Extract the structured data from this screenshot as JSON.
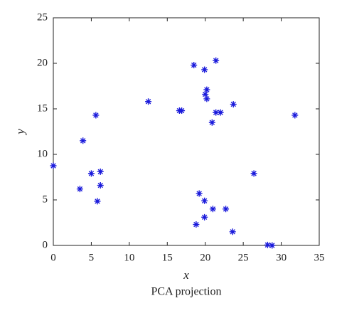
{
  "chart_data": {
    "type": "scatter",
    "x_label": "x",
    "y_label": "y",
    "subtitle": "PCA projection",
    "x": [
      0,
      3.5,
      3.9,
      5,
      5.6,
      6.2,
      6.2,
      5.8,
      12.5,
      16.6,
      16.9,
      18.5,
      19.9,
      21.4,
      20.2,
      20,
      20.2,
      21.4,
      22,
      20.9,
      23.7,
      31.8,
      26.4,
      19.2,
      19.9,
      21,
      22.7,
      19.9,
      18.8,
      23.6,
      28.2,
      28.8
    ],
    "values": [
      8.75,
      6.2,
      11.5,
      7.9,
      14.3,
      8.1,
      6.6,
      4.85,
      15.8,
      14.8,
      14.8,
      19.8,
      19.3,
      20.3,
      17.1,
      16.6,
      16.1,
      14.6,
      14.6,
      13.5,
      15.5,
      14.3,
      7.9,
      5.7,
      4.9,
      4,
      4,
      3.1,
      2.3,
      1.5,
      0.05,
      0
    ],
    "color": "#1a1adb",
    "xlim": [
      0,
      35
    ],
    "ylim": [
      0,
      25
    ],
    "xticks": [
      0,
      5,
      10,
      15,
      20,
      25,
      30,
      35
    ],
    "yticks": [
      0,
      5,
      10,
      15,
      20,
      25
    ]
  }
}
